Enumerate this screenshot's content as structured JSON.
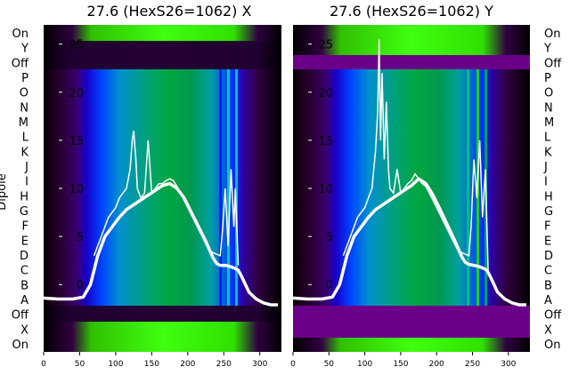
{
  "chart_data": [
    {
      "type": "heatmap",
      "title": "27.6 (HexS26=1062) X",
      "ylabel": "Dipole",
      "row_labels": [
        "On",
        "Y",
        "Off",
        "P",
        "O",
        "N",
        "M",
        "L",
        "K",
        "J",
        "I",
        "H",
        "G",
        "F",
        "E",
        "D",
        "C",
        "B",
        "A",
        "Off",
        "X",
        "On"
      ],
      "x_ticks": [
        0,
        50,
        100,
        150,
        200,
        250,
        300
      ],
      "y_ticks": [
        0,
        5,
        10,
        15,
        20,
        25
      ],
      "xlim": [
        0,
        330
      ],
      "ylim": [
        -7,
        27
      ],
      "overlay_line": {
        "color": "#ffffff",
        "x": [
          0,
          20,
          40,
          55,
          65,
          75,
          85,
          95,
          105,
          115,
          125,
          135,
          145,
          155,
          165,
          175,
          185,
          195,
          205,
          215,
          225,
          235,
          240,
          245,
          252,
          258,
          265,
          270,
          275,
          285,
          295,
          305,
          315,
          325
        ],
        "y": [
          -1.4,
          -1.5,
          -1.5,
          -1.3,
          0,
          3,
          5,
          6,
          7,
          7.8,
          8.3,
          8.8,
          9.3,
          9.8,
          10.3,
          10.5,
          10.0,
          9.0,
          7.5,
          6.0,
          4.5,
          2.8,
          2.2,
          2.0,
          2.0,
          1.9,
          1.7,
          1.5,
          0.8,
          -0.8,
          -1.5,
          -1.9,
          -2.1,
          -2.1
        ]
      },
      "spiky_line": {
        "color": "#ffffff",
        "x": [
          70,
          80,
          90,
          100,
          105,
          110,
          115,
          120,
          123,
          125,
          128,
          130,
          135,
          140,
          145,
          150,
          155,
          160,
          165,
          170,
          175,
          180,
          185,
          190,
          200,
          210,
          220,
          230,
          245,
          248,
          252,
          256,
          260,
          264,
          266,
          270
        ],
        "y": [
          3,
          5,
          7,
          8,
          9,
          9.5,
          10,
          12,
          15,
          16,
          13,
          10,
          9,
          9.5,
          15,
          9.5,
          10,
          10.5,
          10.5,
          10.8,
          11,
          10.8,
          10.2,
          9.5,
          8,
          6.5,
          5,
          3.5,
          3,
          5.5,
          10,
          4,
          12,
          6,
          10,
          2
        ]
      }
    },
    {
      "type": "heatmap",
      "title": "27.6 (HexS26=1062) Y",
      "row_labels": [
        "On",
        "Y",
        "Off",
        "P",
        "O",
        "N",
        "M",
        "L",
        "K",
        "J",
        "I",
        "H",
        "G",
        "F",
        "E",
        "D",
        "C",
        "B",
        "A",
        "Off",
        "X",
        "On"
      ],
      "x_ticks": [
        0,
        50,
        100,
        150,
        200,
        250,
        300
      ],
      "y_ticks": [
        0,
        5,
        10,
        15,
        20,
        25
      ],
      "xlim": [
        0,
        330
      ],
      "ylim": [
        -7,
        27
      ],
      "overlay_line": {
        "color": "#ffffff",
        "x": [
          0,
          20,
          40,
          55,
          65,
          75,
          85,
          95,
          105,
          115,
          125,
          135,
          145,
          155,
          165,
          175,
          185,
          195,
          205,
          215,
          225,
          235,
          240,
          245,
          252,
          258,
          265,
          270,
          275,
          285,
          295,
          305,
          315,
          325
        ],
        "y": [
          -1.4,
          -1.5,
          -1.5,
          -1.3,
          0,
          3,
          5,
          6,
          7,
          7.8,
          8.3,
          8.8,
          9.3,
          9.8,
          10.3,
          11.0,
          10.5,
          9.3,
          7.8,
          6.2,
          4.6,
          2.9,
          2.3,
          2.1,
          2.0,
          1.9,
          1.7,
          1.5,
          0.8,
          -0.8,
          -1.5,
          -1.9,
          -2.1,
          -2.1
        ]
      },
      "spiky_line": {
        "color": "#ffffff",
        "x": [
          70,
          80,
          90,
          100,
          105,
          110,
          115,
          118,
          120,
          122,
          124,
          127,
          130,
          133,
          135,
          140,
          145,
          150,
          155,
          160,
          165,
          170,
          175,
          180,
          185,
          190,
          200,
          210,
          220,
          230,
          245,
          248,
          252,
          256,
          260,
          264,
          268,
          272
        ],
        "y": [
          3,
          5,
          7,
          8,
          9,
          10,
          14,
          18,
          25.5,
          15,
          22,
          13,
          19,
          12,
          10,
          9.5,
          12,
          9.5,
          10,
          10.5,
          10.8,
          11.5,
          11,
          10.5,
          10.2,
          9.5,
          8,
          6.5,
          5,
          3.5,
          3,
          6,
          13,
          9,
          15,
          7,
          12,
          1
        ]
      }
    }
  ]
}
